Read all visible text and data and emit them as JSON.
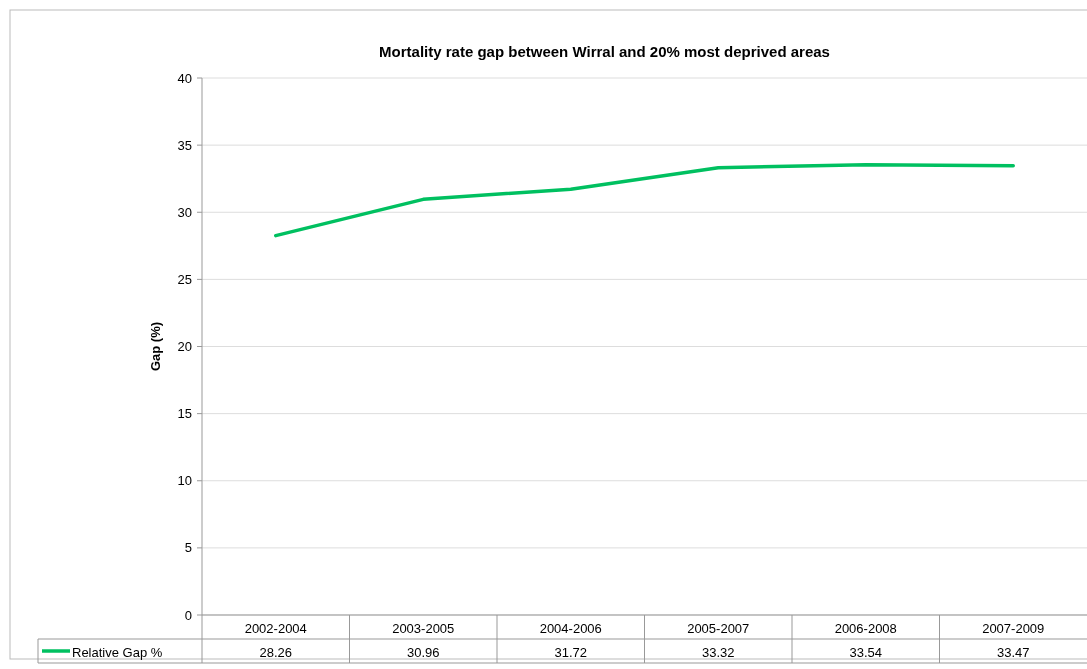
{
  "chart_data": {
    "type": "line",
    "title": "Mortality rate gap between Wirral and 20% most deprived areas",
    "ylabel": "Gap (%)",
    "categories": [
      "2002-2004",
      "2003-2005",
      "2004-2006",
      "2005-2007",
      "2006-2008",
      "2007-2009"
    ],
    "series": [
      {
        "name": "Relative Gap %",
        "color": "#00c060",
        "values": [
          28.26,
          30.96,
          31.72,
          33.32,
          33.54,
          33.47
        ]
      }
    ],
    "ylim": [
      0,
      40
    ],
    "yticks": [
      0,
      5,
      10,
      15,
      20,
      25,
      30,
      35,
      40
    ],
    "grid": "y",
    "data_labels": true,
    "legend": "bottom left",
    "marker": "none",
    "line_style": "solid"
  }
}
